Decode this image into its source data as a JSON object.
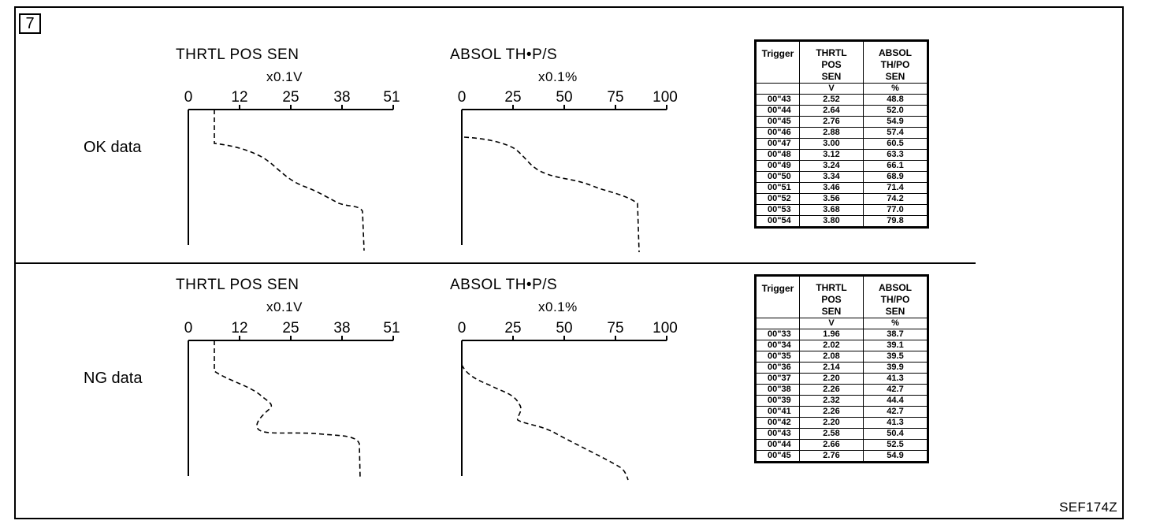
{
  "figure_number": "7",
  "figure_code": "SEF174Z",
  "sections": [
    {
      "row_label": "OK data",
      "charts": [
        {
          "title": "THRTL POS SEN",
          "unit": "x0.1V",
          "ticks": [
            "0",
            "12",
            "25",
            "38",
            "51"
          ]
        },
        {
          "title": "ABSOL TH•P/S",
          "unit": "x0.1%",
          "ticks": [
            "0",
            "25",
            "50",
            "75",
            "100"
          ]
        }
      ],
      "table": {
        "headers": {
          "trigger": "Trigger",
          "col1": "THRTL POS SEN",
          "col2": "ABSOL TH/PO SEN"
        },
        "units": {
          "col1": "V",
          "col2": "%"
        },
        "rows": [
          {
            "t": "00\"43",
            "v": "2.52",
            "p": "48.8"
          },
          {
            "t": "00\"44",
            "v": "2.64",
            "p": "52.0"
          },
          {
            "t": "00\"45",
            "v": "2.76",
            "p": "54.9"
          },
          {
            "t": "00\"46",
            "v": "2.88",
            "p": "57.4"
          },
          {
            "t": "00\"47",
            "v": "3.00",
            "p": "60.5"
          },
          {
            "t": "00\"48",
            "v": "3.12",
            "p": "63.3"
          },
          {
            "t": "00\"49",
            "v": "3.24",
            "p": "66.1"
          },
          {
            "t": "00\"50",
            "v": "3.34",
            "p": "68.9"
          },
          {
            "t": "00\"51",
            "v": "3.46",
            "p": "71.4"
          },
          {
            "t": "00\"52",
            "v": "3.56",
            "p": "74.2"
          },
          {
            "t": "00\"53",
            "v": "3.68",
            "p": "77.0"
          },
          {
            "t": "00\"54",
            "v": "3.80",
            "p": "79.8"
          }
        ]
      }
    },
    {
      "row_label": "NG data",
      "charts": [
        {
          "title": "THRTL POS SEN",
          "unit": "x0.1V",
          "ticks": [
            "0",
            "12",
            "25",
            "38",
            "51"
          ]
        },
        {
          "title": "ABSOL TH•P/S",
          "unit": "x0.1%",
          "ticks": [
            "0",
            "25",
            "50",
            "75",
            "100"
          ]
        }
      ],
      "table": {
        "headers": {
          "trigger": "Trigger",
          "col1": "THRTL POS SEN",
          "col2": "ABSOL TH/PO SEN"
        },
        "units": {
          "col1": "V",
          "col2": "%"
        },
        "rows": [
          {
            "t": "00\"33",
            "v": "1.96",
            "p": "38.7"
          },
          {
            "t": "00\"34",
            "v": "2.02",
            "p": "39.1"
          },
          {
            "t": "00\"35",
            "v": "2.08",
            "p": "39.5"
          },
          {
            "t": "00\"36",
            "v": "2.14",
            "p": "39.9"
          },
          {
            "t": "00\"37",
            "v": "2.20",
            "p": "41.3"
          },
          {
            "t": "00\"38",
            "v": "2.26",
            "p": "42.7"
          },
          {
            "t": "00\"39",
            "v": "2.32",
            "p": "44.4"
          },
          {
            "t": "00\"41",
            "v": "2.26",
            "p": "42.7"
          },
          {
            "t": "00\"42",
            "v": "2.20",
            "p": "41.3"
          },
          {
            "t": "00\"43",
            "v": "2.58",
            "p": "50.4"
          },
          {
            "t": "00\"44",
            "v": "2.66",
            "p": "52.5"
          },
          {
            "t": "00\"45",
            "v": "2.76",
            "p": "54.9"
          }
        ]
      }
    }
  ]
}
